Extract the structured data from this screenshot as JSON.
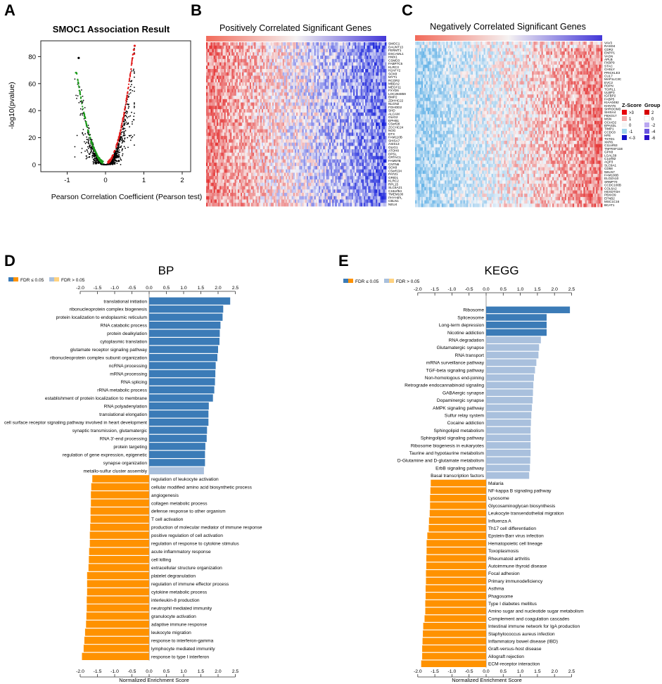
{
  "panels": {
    "a": "A",
    "b": "B",
    "c": "C",
    "d": "D",
    "e": "E"
  },
  "volcano": {
    "title": "SMOC1 Association Result",
    "xlabel": "Pearson Correlation Coefficient (Pearson test)",
    "ylabel": "-log10(pvalue)",
    "xticks": [
      "-1",
      "0",
      "1",
      "2"
    ],
    "yticks": [
      "0",
      "20",
      "40",
      "60",
      "80"
    ]
  },
  "heatmap_pos": {
    "title": "Positively Correlated Significant Genes",
    "genes": [
      "SMOC1",
      "DAUNT13",
      "FERMT1",
      "DSCAML1",
      "HMX1",
      "CSMD3",
      "FABP7C5",
      "KLRC3",
      "H2AFY2",
      "SOX8",
      "MYT1",
      "RCOR2",
      "MBDA2",
      "MEGF11",
      "FXYD6",
      "LOC284859",
      "BMP2",
      "ZDHHC22",
      "NLGN2",
      "FOHOD2",
      "SHD",
      "ALCAM",
      "OLIG2",
      "EPHB1",
      "C5orf28",
      "ZCCHC24",
      "NOG",
      "DTX",
      "FAM110B",
      "SHISA7",
      "ASIS13",
      "OLIG1",
      "ATOH8",
      "DPSL",
      "CRTAC1",
      "FAM57B",
      "CNTN6",
      "SOX8",
      "C5orf134",
      "PATZ1",
      "GRID1",
      "KLRC2",
      "RPL15",
      "SLC6A21",
      "C16orf54",
      "TMEM100",
      "PHYHIPL",
      "CBLN1",
      "NEU4"
    ]
  },
  "heatmap_neg": {
    "title": "Negatively Correlated Significant Genes",
    "genes": [
      "VAV3",
      "RASD4",
      "CDR2",
      "ENPP1",
      "VASN",
      "APLB",
      "FKBP9",
      "STAC",
      "CHSLY",
      "PRICKLE3",
      "CUL7",
      "MAP1LC3C",
      "EVC2",
      "PDPN",
      "TCIRL1",
      "ULBP3",
      "IGFBP2",
      "FABP5",
      "KIAA0492",
      "KHNYN",
      "SHROOM3",
      "SHISA4",
      "FBXO17",
      "MSN",
      "OCIAD2",
      "EPAS3L",
      "TIMP1",
      "CCDC8",
      "HFE",
      "TSTD1",
      "XKR6",
      "C11orf63",
      "TNFRSF11B",
      "GPX8",
      "LGALS9",
      "C1orf82",
      "AQP3",
      "SLC9A1",
      "CD58",
      "NELN7",
      "FAM100B",
      "ELOZA10",
      "SRMP70",
      "CCDC100B",
      "COL6A2",
      "HEXDTGH",
      "PBXIO9",
      "EFNB2",
      "MSC1C16",
      "BCAT1"
    ],
    "zscore_title": "Z-Score",
    "zscore_labels": [
      ">3",
      "1",
      "0",
      "-1",
      "<-3"
    ],
    "zscore_colors": [
      "#e8000b",
      "#f3a8a8",
      "#f6f6f6",
      "#9fd3ec",
      "#1010c8"
    ],
    "group_title": "Group",
    "group_labels": [
      "2",
      "0",
      "-2",
      "-4",
      "-6"
    ],
    "group_colors": [
      "#d60000",
      "#ffffff",
      "#b9a6f0",
      "#6a56e0",
      "#2a10c8"
    ]
  },
  "legend": {
    "sig_label": "FDR ≤ 0.05",
    "nonsig_label": "FDR > 0.05"
  },
  "colors": {
    "pos_sig": "#3b7bb7",
    "pos_nonsig": "#a9c0dd",
    "neg_sig": "#ff9200",
    "neg_nonsig": "#ffd27f"
  },
  "chart_data": [
    {
      "type": "bar",
      "title": "BP",
      "xlabel": "Normalized Enrichment Score",
      "xlim": [
        -2.0,
        2.5
      ],
      "xticks": [
        "-2.0",
        "-1.5",
        "-1.0",
        "-0.5",
        "0.0",
        "0.5",
        "1.0",
        "1.5",
        "2.0",
        "2.5"
      ],
      "categories": [
        "translational initiation",
        "ribonucleoprotein complex biogenesis",
        "protein localization to endoplasmic reticulum",
        "RNA catabolic process",
        "protein dealkylation",
        "cytoplasmic translation",
        "glutamate receptor signaling pathway",
        "ribonucleoprotein complex subunit organization",
        "ncRNA processing",
        "mRNA processing",
        "RNA splicing",
        "rRNA metabolic process",
        "establishment of protein localization to membrane",
        "RNA polyadenylation",
        "translational elongation",
        "cell surface receptor signaling pathway involved in heart development",
        "synaptic transmission, glutamatergic",
        "RNA 3'-end processing",
        "protein targeting",
        "regulation of gene expression, epigenetic",
        "synapse organization",
        "metallo-sulfur cluster assembly",
        "regulation of leukocyte activation",
        "cellular modified amino acid biosynthetic process",
        "angiogenesis",
        "collagen metabolic process",
        "defense response to other organism",
        "T cell activation",
        "production of molecular mediator of immune response",
        "positive regulation of cell activation",
        "regulation of response to cytokine stimulus",
        "acute inflammatory response",
        "cell killing",
        "extracellular structure organization",
        "platelet degranulation",
        "regulation of immune effector process",
        "cytokine metabolic process",
        "interleukin-8 production",
        "neutrophil mediated immunity",
        "granulocyte activation",
        "adaptive immune response",
        "leukocyte migration",
        "response to interferon-gamma",
        "lymphocyte mediated immunity",
        "response to type I interferon"
      ],
      "values": [
        2.35,
        2.15,
        2.13,
        2.07,
        2.05,
        2.04,
        2.0,
        1.98,
        1.93,
        1.92,
        1.91,
        1.89,
        1.85,
        1.73,
        1.72,
        1.72,
        1.68,
        1.67,
        1.63,
        1.62,
        1.62,
        1.59,
        -1.65,
        -1.68,
        -1.69,
        -1.69,
        -1.7,
        -1.7,
        -1.71,
        -1.72,
        -1.72,
        -1.74,
        -1.75,
        -1.76,
        -1.8,
        -1.8,
        -1.8,
        -1.81,
        -1.81,
        -1.82,
        -1.83,
        -1.86,
        -1.88,
        -1.9,
        -1.95
      ],
      "significant": [
        true,
        true,
        true,
        true,
        true,
        true,
        true,
        true,
        true,
        true,
        true,
        true,
        true,
        true,
        true,
        true,
        true,
        true,
        true,
        true,
        true,
        false,
        true,
        true,
        true,
        true,
        true,
        true,
        true,
        true,
        true,
        true,
        true,
        true,
        true,
        true,
        true,
        true,
        true,
        true,
        true,
        true,
        true,
        true,
        true
      ]
    },
    {
      "type": "bar",
      "title": "KEGG",
      "xlabel": "Normalized Enrichment Score",
      "xlim": [
        -2.0,
        2.5
      ],
      "xticks": [
        "-2.0",
        "-1.5",
        "-1.0",
        "-0.5",
        "0.0",
        "0.5",
        "1.0",
        "1.5",
        "2.0",
        "2.5"
      ],
      "categories": [
        "Ribosome",
        "Spliceosome",
        "Long-term depression",
        "Nicotine addiction",
        "RNA degradation",
        "Glutamatergic synapse",
        "RNA transport",
        "mRNA surveillance pathway",
        "TGF-beta signaling pathway",
        "Non-homologous end-joining",
        "Retrograde endocannabinoid signaling",
        "GABAergic synapse",
        "Dopaminergic synapse",
        "AMPK signaling pathway",
        "Sulfur relay system",
        "Cocaine addiction",
        "Sphingolipid metabolism",
        "Sphingolipid signaling pathway",
        "Ribosome biogenesis in eukaryotes",
        "Taurine and hypotaurine metabolism",
        "D-Glutamine and D-glutamate metabolism",
        "ErbB signaling pathway",
        "Basal transcription factors",
        "Malaria",
        "NF-kappa B signaling pathway",
        "Lysosome",
        "Glycosaminoglycan biosynthesis",
        "Leukocyte transendothelial migration",
        "Influenza A",
        "Th17 cell differentiation",
        "Epstein-Barr virus infection",
        "Hematopoietic cell lineage",
        "Toxoplasmosis",
        "Rheumatoid arthritis",
        "Autoimmune thyroid disease",
        "Focal adhesion",
        "Primary immunodeficiency",
        "Asthma",
        "Phagosome",
        "Type I diabetes mellitus",
        "Amino sugar and nucleotide sugar metabolism",
        "Complement and coagulation cascades",
        "Intestinal immune network for IgA production",
        "Staphylococcus aureus infection",
        "Inflammatory bowel disease (IBD)",
        "Graft-versus-host disease",
        "Allograft rejection",
        "ECM-receptor interaction"
      ],
      "values": [
        2.45,
        1.77,
        1.77,
        1.77,
        1.6,
        1.55,
        1.53,
        1.47,
        1.43,
        1.4,
        1.38,
        1.37,
        1.36,
        1.34,
        1.32,
        1.31,
        1.3,
        1.3,
        1.3,
        1.3,
        1.29,
        1.28,
        1.26,
        -1.62,
        -1.63,
        -1.64,
        -1.64,
        -1.65,
        -1.67,
        -1.68,
        -1.72,
        -1.74,
        -1.74,
        -1.75,
        -1.75,
        -1.76,
        -1.76,
        -1.77,
        -1.77,
        -1.78,
        -1.78,
        -1.8,
        -1.84,
        -1.85,
        -1.86,
        -1.87,
        -1.87,
        -1.9
      ],
      "significant": [
        true,
        true,
        true,
        true,
        false,
        false,
        false,
        false,
        false,
        false,
        false,
        false,
        false,
        false,
        false,
        false,
        false,
        false,
        false,
        false,
        false,
        false,
        false,
        true,
        true,
        true,
        true,
        true,
        true,
        true,
        true,
        true,
        true,
        true,
        true,
        true,
        true,
        true,
        true,
        true,
        true,
        true,
        true,
        true,
        true,
        true,
        true,
        true
      ]
    }
  ]
}
